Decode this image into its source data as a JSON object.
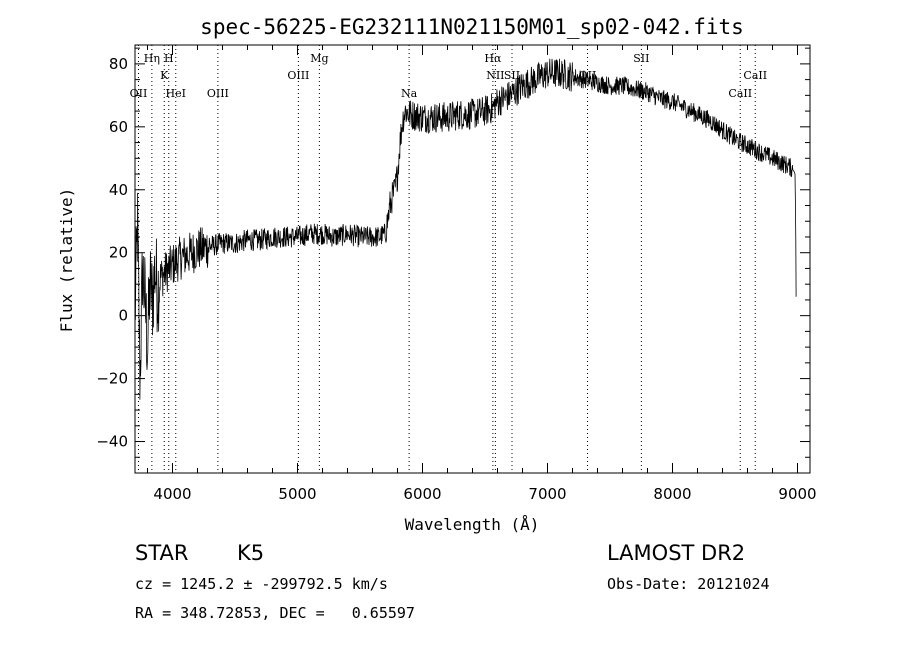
{
  "chart_data": {
    "type": "line",
    "title": "spec-56225-EG232111N021150M01_sp02-042.fits",
    "xlabel": "Wavelength (Å)",
    "ylabel": "Flux (relative)",
    "xlim": [
      3700,
      9100
    ],
    "ylim": [
      -50,
      86
    ],
    "xticks": [
      4000,
      5000,
      6000,
      7000,
      8000,
      9000
    ],
    "yticks": [
      -40,
      -20,
      0,
      20,
      40,
      60,
      80
    ],
    "grid": false,
    "series": [
      {
        "x": [
          3700,
          3720,
          3740,
          3760,
          3780,
          3800,
          3820,
          3840,
          3860,
          3880,
          3900,
          3950,
          4000,
          4050,
          4100,
          4150,
          4200,
          4300,
          4400,
          4500,
          4600,
          4700,
          4800,
          4900,
          5000,
          5100,
          5200,
          5300,
          5400,
          5500,
          5600,
          5650,
          5700,
          5720,
          5740,
          5760,
          5780,
          5800,
          5820,
          5840,
          5860,
          5900,
          6000,
          6100,
          6200,
          6300,
          6400,
          6500,
          6560,
          6600,
          6700,
          6800,
          6900,
          7000,
          7100,
          7200,
          7300,
          7400,
          7500,
          7600,
          7700,
          7800,
          7900,
          8000,
          8100,
          8200,
          8300,
          8400,
          8500,
          8600,
          8700,
          8800,
          8900,
          8950,
          8970,
          8980,
          8985,
          8990
        ],
        "y": [
          0,
          30,
          -20,
          15,
          5,
          -10,
          10,
          5,
          15,
          8,
          12,
          14,
          16,
          18,
          19,
          20,
          21,
          22,
          23,
          23,
          24,
          24,
          25,
          25,
          25,
          26,
          26,
          25,
          26,
          25,
          25,
          25,
          26,
          30,
          35,
          38,
          40,
          45,
          55,
          62,
          65,
          64,
          63,
          63,
          63,
          64,
          64,
          65,
          66,
          68,
          70,
          73,
          75,
          77,
          77,
          76,
          75,
          74,
          73,
          73,
          72,
          71,
          69,
          68,
          66,
          64,
          62,
          59,
          56,
          54,
          52,
          50,
          48,
          47,
          46,
          45,
          30,
          0
        ]
      }
    ],
    "lines": [
      {
        "x": 3728,
        "label": "OII",
        "row": 3
      },
      {
        "x": 3835,
        "label": "Hη",
        "row": 1
      },
      {
        "x": 3934,
        "label": "K",
        "row": 2
      },
      {
        "x": 3970,
        "label": "H",
        "row": 1
      },
      {
        "x": 4026,
        "label": "HeI",
        "row": 3
      },
      {
        "x": 4363,
        "label": "OIII",
        "row": 3
      },
      {
        "x": 5007,
        "label": "OIII",
        "row": 2
      },
      {
        "x": 5175,
        "label": "Mg",
        "row": 1
      },
      {
        "x": 5893,
        "label": "Na",
        "row": 3
      },
      {
        "x": 6563,
        "label": "Hα",
        "row": 1
      },
      {
        "x": 6583,
        "label": "NII",
        "row": 2
      },
      {
        "x": 6716,
        "label": "SII",
        "row": 2
      },
      {
        "x": 7320,
        "label": "OII",
        "row": 2
      },
      {
        "x": 7751,
        "label": "SII",
        "row": 1
      },
      {
        "x": 8542,
        "label": "CaII",
        "row": 3
      },
      {
        "x": 8662,
        "label": "CaII",
        "row": 2
      }
    ]
  },
  "info": {
    "object_class": "STAR",
    "subclass": "K5",
    "survey": "LAMOST DR2",
    "cz": "cz = 1245.2 ± -299792.5 km/s",
    "obs_date": "Obs-Date: 20121024",
    "radec": "RA = 348.72853, DEC =   0.65597"
  }
}
